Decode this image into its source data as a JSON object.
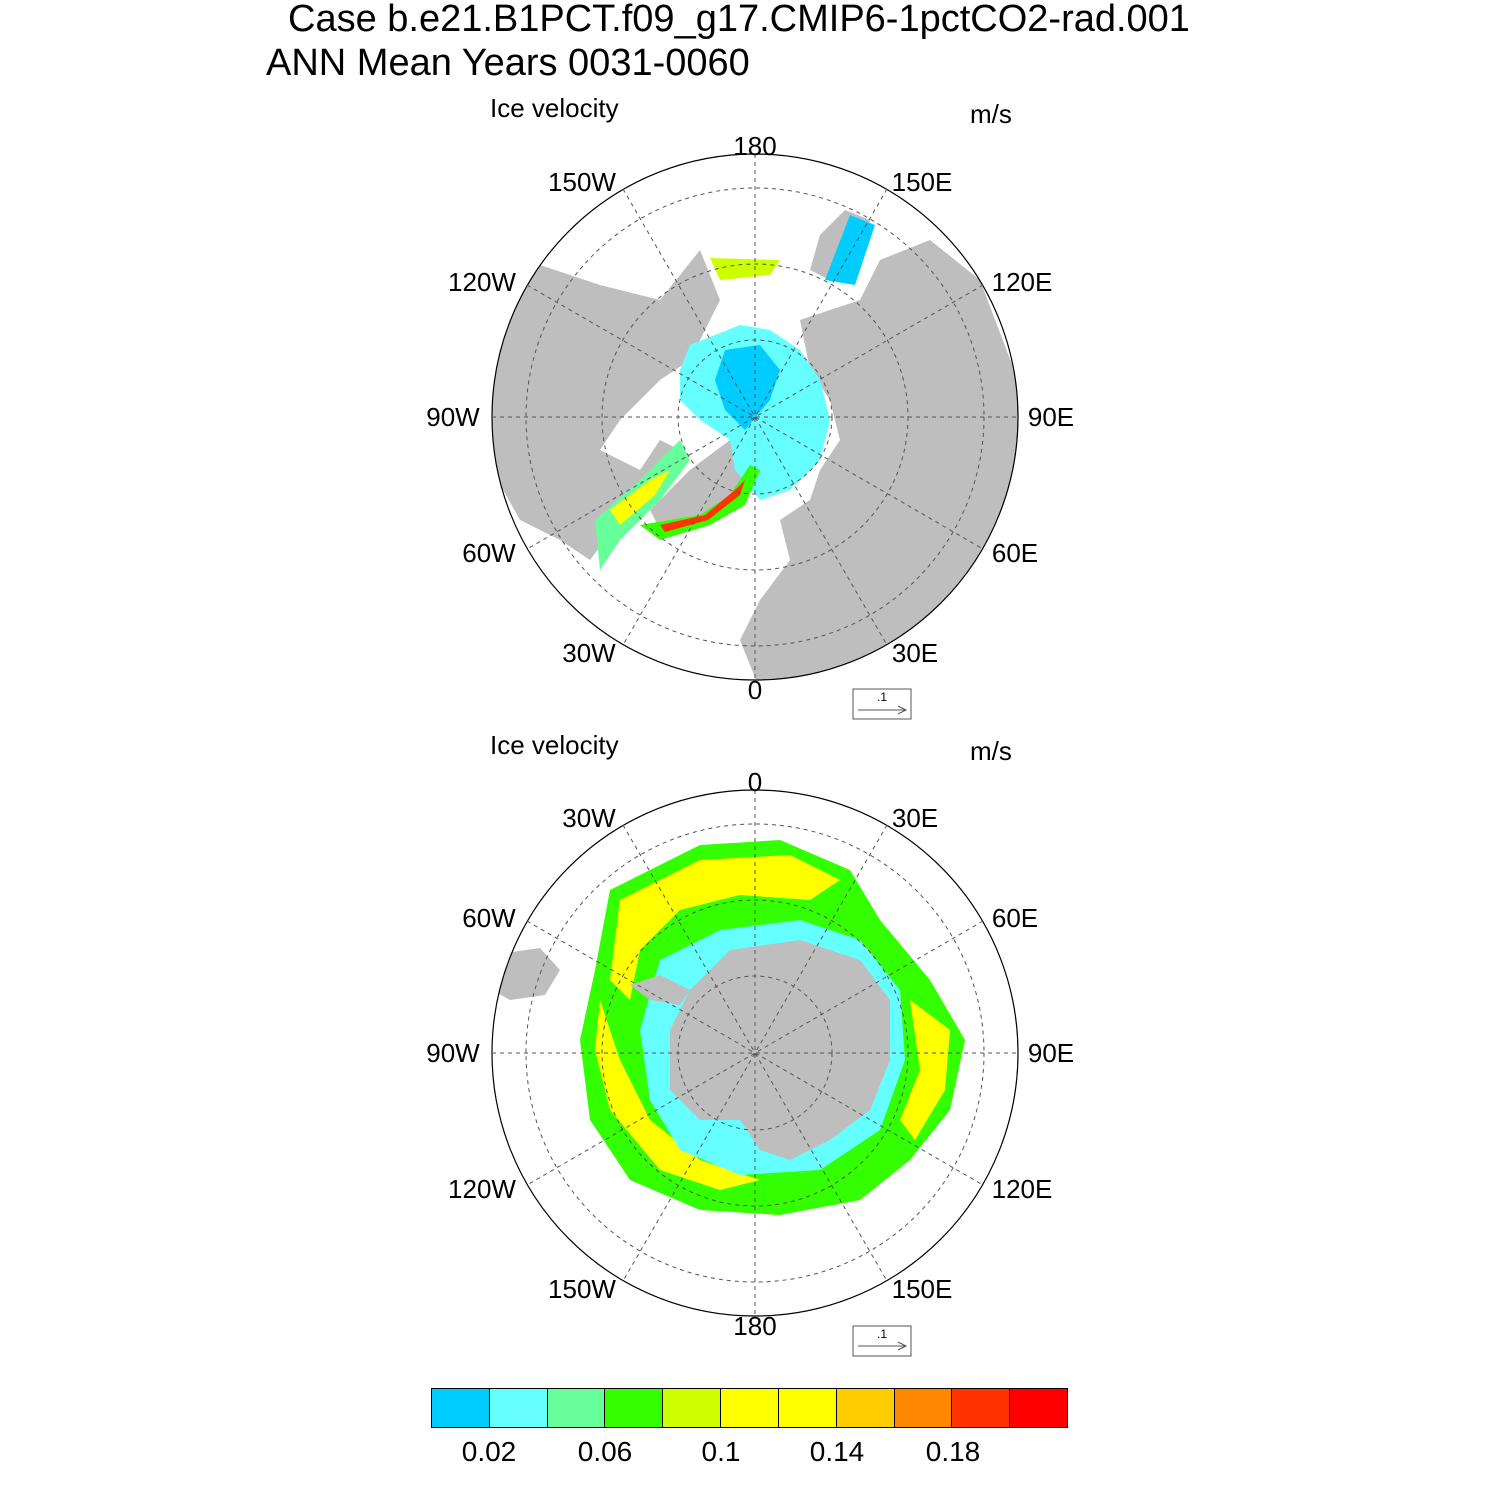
{
  "header": {
    "title_line1": "Case b.e21.B1PCT.f09_g17.CMIP6-1pctCO2-rad.001",
    "title_line2": "ANN Mean   Years 0031-0060"
  },
  "north_panel": {
    "title": "Ice velocity",
    "units": "m/s",
    "labels": [
      "180",
      "150E",
      "120E",
      "90E",
      "60E",
      "30E",
      "0",
      "30W",
      "60W",
      "90W",
      "120W",
      "150W"
    ],
    "ref_vector": ".1"
  },
  "south_panel": {
    "title": "Ice velocity",
    "units": "m/s",
    "labels": [
      "0",
      "30E",
      "60E",
      "90E",
      "120E",
      "150E",
      "180",
      "150W",
      "120W",
      "90W",
      "60W",
      "30W"
    ],
    "ref_vector": ".1"
  },
  "colorbar": {
    "colors": [
      "#00ccff",
      "#66ffff",
      "#66ff99",
      "#33ff00",
      "#ccff00",
      "#ffff00",
      "#ffff00",
      "#ffcc00",
      "#ff8800",
      "#ff3300",
      "#ff0000"
    ],
    "labels": [
      "0.02",
      "0.06",
      "0.1",
      "0.14",
      "0.18"
    ]
  },
  "colors": {
    "land": "#bebebe",
    "ocean": "#ffffff",
    "grid": "#555555"
  }
}
